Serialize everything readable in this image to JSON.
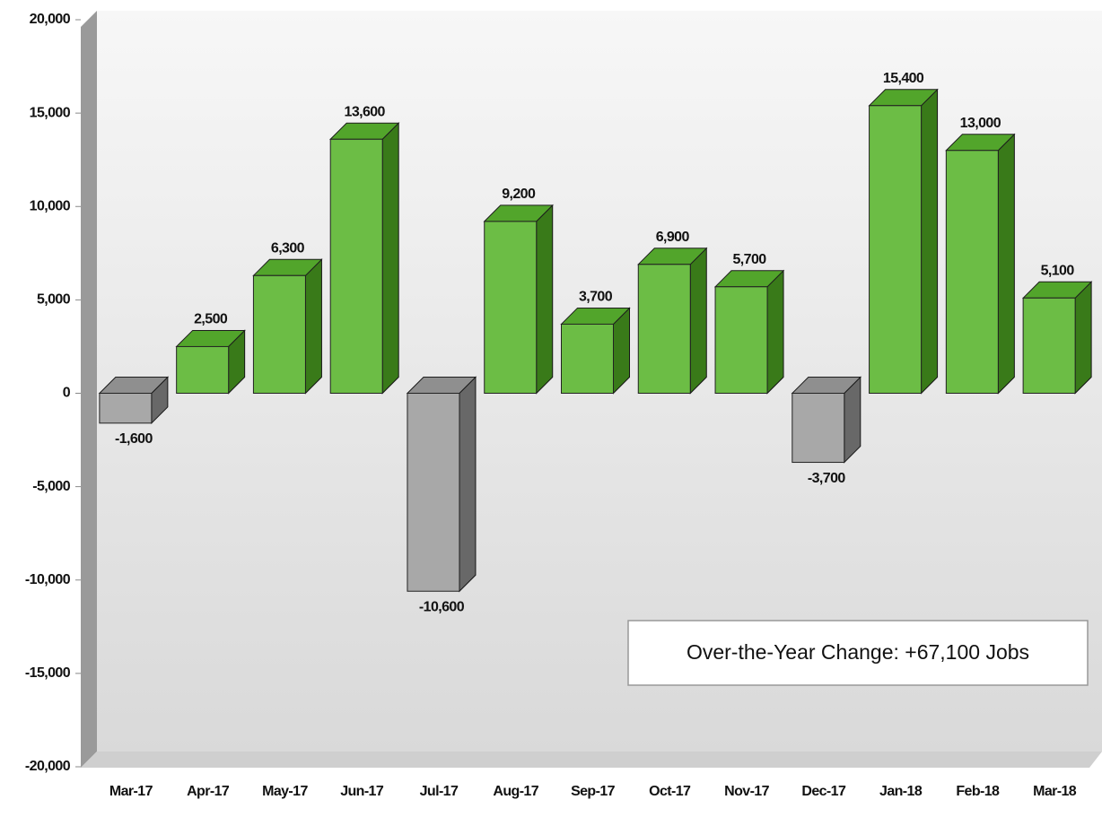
{
  "chart_data": {
    "type": "bar3d",
    "categories": [
      "Mar-17",
      "Apr-17",
      "May-17",
      "Jun-17",
      "Jul-17",
      "Aug-17",
      "Sep-17",
      "Oct-17",
      "Nov-17",
      "Dec-17",
      "Jan-18",
      "Feb-18",
      "Mar-18"
    ],
    "values": [
      -1600,
      2500,
      6300,
      13600,
      -10600,
      9200,
      3700,
      6900,
      5700,
      -3700,
      15400,
      13000,
      5100
    ],
    "value_labels": [
      "-1,600",
      "2,500",
      "6,300",
      "13,600",
      "-10,600",
      "9,200",
      "3,700",
      "6,900",
      "5,700",
      "-3,700",
      "15,400",
      "13,000",
      "5,100"
    ],
    "positive_color": "#6cbd45",
    "negative_color": "#a8a8a8",
    "ylim": [
      -20000,
      20000
    ],
    "yticks": [
      {
        "value": -20000,
        "label": "-20,000"
      },
      {
        "value": -15000,
        "label": "-15,000"
      },
      {
        "value": -10000,
        "label": "-10,000"
      },
      {
        "value": -5000,
        "label": "-5,000"
      },
      0,
      {
        "value": 5000,
        "label": "5,000"
      },
      {
        "value": 10000,
        "label": "10,000"
      },
      {
        "value": 15000,
        "label": "15,000"
      },
      {
        "value": 20000,
        "label": "20,000"
      }
    ],
    "annotation": "Over-the-Year Change: +67,100 Jobs"
  }
}
